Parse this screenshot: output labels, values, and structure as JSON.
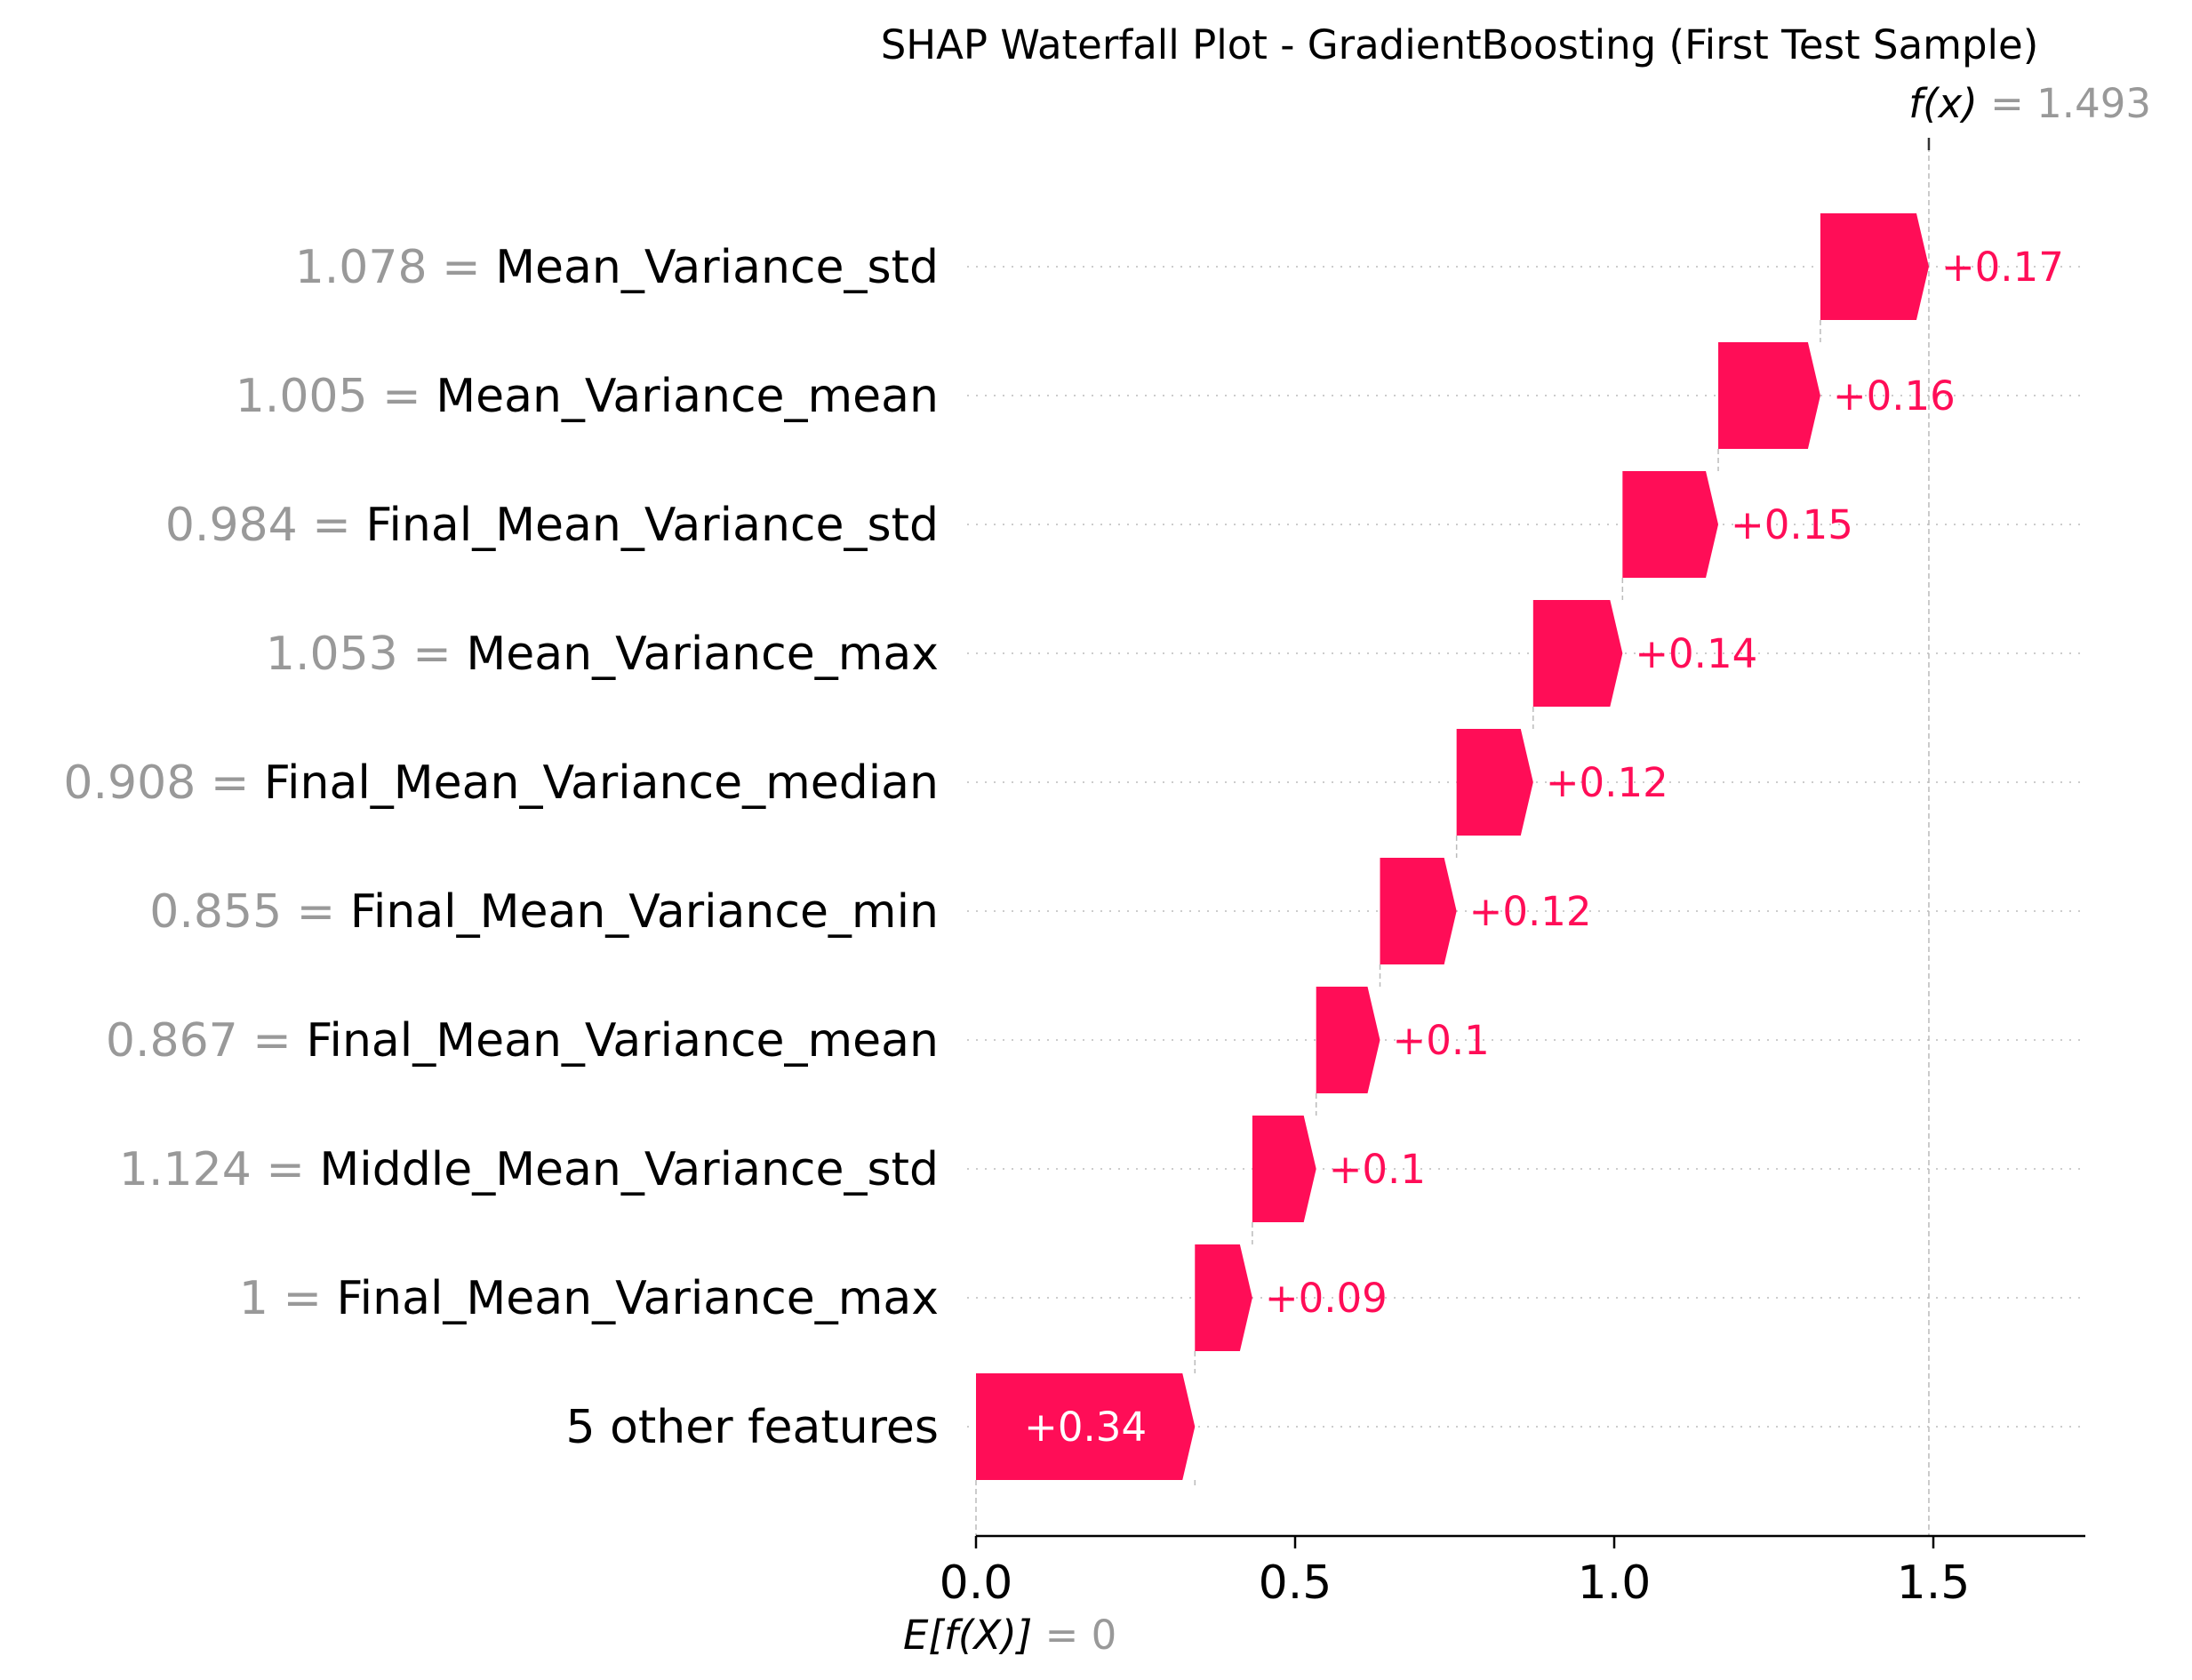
{
  "chart_data": {
    "type": "bar",
    "title": "SHAP Waterfall Plot - GradientBoosting (First Test Sample)",
    "fx": {
      "label_prefix": "f(x)",
      "equals": "=",
      "value_text": "1.493",
      "value": 1.493
    },
    "base": {
      "label_prefix": "E[f(X)]",
      "equals": "=",
      "value_text": "0",
      "value": 0
    },
    "xlim": [
      0,
      1.75
    ],
    "xticks": [
      {
        "value": 0.0,
        "label": "0.0"
      },
      {
        "value": 0.5,
        "label": "0.5"
      },
      {
        "value": 1.0,
        "label": "1.0"
      },
      {
        "value": 1.5,
        "label": "1.5"
      }
    ],
    "features": [
      {
        "value_text": "1.078",
        "name": "Mean_Variance_std",
        "shap": 0.17,
        "label": "+0.17",
        "start": 1.323,
        "end": 1.493
      },
      {
        "value_text": "1.005",
        "name": "Mean_Variance_mean",
        "shap": 0.16,
        "label": "+0.16",
        "start": 1.163,
        "end": 1.323
      },
      {
        "value_text": "0.984",
        "name": "Final_Mean_Variance_std",
        "shap": 0.15,
        "label": "+0.15",
        "start": 1.013,
        "end": 1.163
      },
      {
        "value_text": "1.053",
        "name": "Mean_Variance_max",
        "shap": 0.14,
        "label": "+0.14",
        "start": 0.873,
        "end": 1.013
      },
      {
        "value_text": "0.908",
        "name": "Final_Mean_Variance_median",
        "shap": 0.12,
        "label": "+0.12",
        "start": 0.753,
        "end": 0.873
      },
      {
        "value_text": "0.855",
        "name": "Final_Mean_Variance_min",
        "shap": 0.12,
        "label": "+0.12",
        "start": 0.633,
        "end": 0.753
      },
      {
        "value_text": "0.867",
        "name": "Final_Mean_Variance_mean",
        "shap": 0.1,
        "label": "+0.1",
        "start": 0.533,
        "end": 0.633
      },
      {
        "value_text": "1.124",
        "name": "Middle_Mean_Variance_std",
        "shap": 0.1,
        "label": "+0.1",
        "start": 0.433,
        "end": 0.533
      },
      {
        "value_text": "1",
        "name": "Final_Mean_Variance_max",
        "shap": 0.09,
        "label": "+0.09",
        "start": 0.343,
        "end": 0.433
      },
      {
        "value_text": "",
        "name": "5 other features",
        "shap": 0.34,
        "label": "+0.34",
        "start": 0.0,
        "end": 0.343
      }
    ],
    "colors": {
      "positive": "#ff0d57",
      "value_gray": "#999999",
      "guide": "#bbbbbb",
      "grid": "#cccccc"
    }
  }
}
